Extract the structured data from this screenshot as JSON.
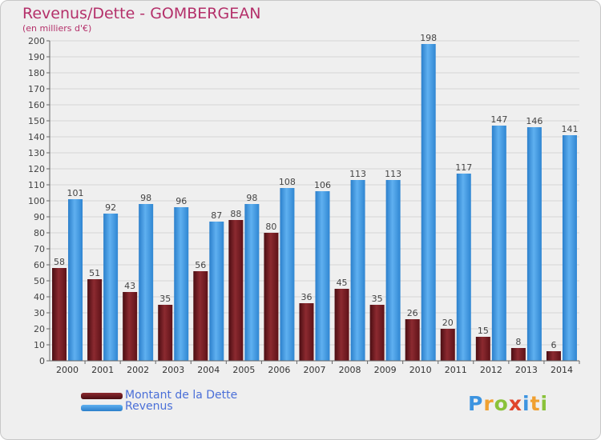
{
  "chart_data": {
    "type": "bar",
    "title": "Revenus/Dette - GOMBERGEAN",
    "subtitle": "(en milliers d'€)",
    "categories": [
      "2000",
      "2001",
      "2002",
      "2003",
      "2004",
      "2005",
      "2006",
      "2007",
      "2008",
      "2009",
      "2010",
      "2011",
      "2012",
      "2013",
      "2014"
    ],
    "series": [
      {
        "name": "Montant de la Dette",
        "color": "#7a1c22",
        "values": [
          58,
          51,
          43,
          35,
          56,
          88,
          80,
          36,
          45,
          35,
          26,
          20,
          15,
          8,
          6
        ]
      },
      {
        "name": "Revenus",
        "color": "#3d94e0",
        "values": [
          101,
          92,
          98,
          96,
          87,
          98,
          108,
          106,
          113,
          113,
          198,
          117,
          147,
          146,
          141
        ]
      }
    ],
    "ylim": [
      0,
      200
    ],
    "ytick_step": 10,
    "grid": true,
    "legend_position": "bottom-left"
  },
  "logo": {
    "text": "Proxiti",
    "letters": [
      "P",
      "r",
      "o",
      "x",
      "i",
      "t",
      "i"
    ],
    "colors": [
      "#3d94e0",
      "#f0a030",
      "#8ac23a",
      "#e0452a",
      "#3d94e0",
      "#f0a030",
      "#8ac23a"
    ]
  }
}
